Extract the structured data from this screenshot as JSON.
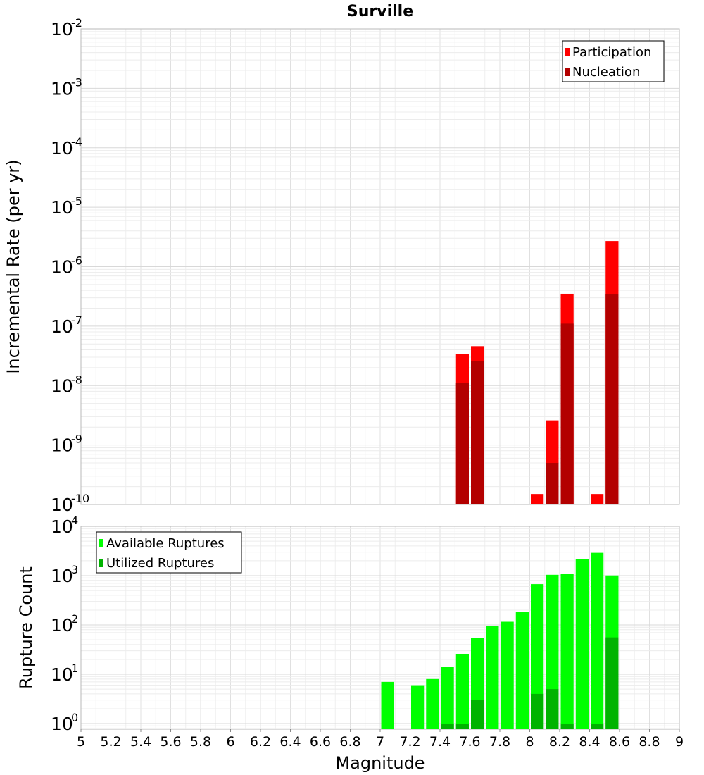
{
  "chart_data": [
    {
      "type": "bar",
      "title": "Surville",
      "ylabel": "Incremental Rate (per yr)",
      "xlabel": "",
      "yscale": "log",
      "xlim": [
        5,
        9
      ],
      "ylim": [
        1e-10,
        0.01
      ],
      "ytick_exponents": [
        "-2",
        "-3",
        "-4",
        "-5",
        "-6",
        "-7",
        "-8",
        "-9",
        "-10"
      ],
      "ytick_base": "10",
      "bar_width": 0.1,
      "legend": {
        "placement": "top-right",
        "entries": [
          "Participation",
          "Nucleation"
        ]
      },
      "colors": {
        "Participation": "#ff0000",
        "Nucleation": "#b30000",
        "grid": "#e6e6e6"
      },
      "series": [
        {
          "name": "Participation",
          "x": [
            7.55,
            7.65,
            8.05,
            8.15,
            8.25,
            8.45,
            8.55
          ],
          "values": [
            3.4e-08,
            4.6e-08,
            1.5e-10,
            2.6e-09,
            3.5e-07,
            1.5e-10,
            2.7e-06
          ]
        },
        {
          "name": "Nucleation",
          "x": [
            7.55,
            7.65,
            8.15,
            8.25,
            8.55
          ],
          "values": [
            1.1e-08,
            2.6e-08,
            5e-10,
            1.1e-07,
            3.4e-07
          ]
        }
      ]
    },
    {
      "type": "bar",
      "ylabel": "Rupture Count",
      "xlabel": "Magnitude",
      "yscale": "log",
      "xlim": [
        5,
        9
      ],
      "ylim": [
        0.77,
        10000
      ],
      "ytick_exponents": [
        "4",
        "3",
        "2",
        "1",
        "0"
      ],
      "ytick_base": "10",
      "xticks": [
        "5",
        "5.2",
        "5.4",
        "5.6",
        "5.8",
        "6",
        "6.2",
        "6.4",
        "6.6",
        "6.8",
        "7",
        "7.2",
        "7.4",
        "7.6",
        "7.8",
        "8",
        "8.2",
        "8.4",
        "8.6",
        "8.8",
        "9"
      ],
      "bar_width": 0.1,
      "legend": {
        "placement": "top-left",
        "entries": [
          "Available Ruptures",
          "Utilized Ruptures"
        ]
      },
      "colors": {
        "Available Ruptures": "#00ff00",
        "Utilized Ruptures": "#00b300",
        "grid": "#e6e6e6"
      },
      "series": [
        {
          "name": "Available Ruptures",
          "x": [
            7.05,
            7.25,
            7.35,
            7.45,
            7.55,
            7.65,
            7.75,
            7.85,
            7.95,
            8.05,
            8.15,
            8.25,
            8.35,
            8.45,
            8.55
          ],
          "values": [
            7,
            6,
            8,
            14,
            26,
            54,
            94,
            116,
            184,
            672,
            1040,
            1070,
            2140,
            2900,
            1010
          ]
        },
        {
          "name": "Utilized Ruptures",
          "x": [
            7.45,
            7.55,
            7.65,
            8.05,
            8.15,
            8.25,
            8.45,
            8.55
          ],
          "values": [
            1,
            1,
            3,
            4,
            5,
            1,
            1,
            56
          ]
        }
      ]
    }
  ]
}
